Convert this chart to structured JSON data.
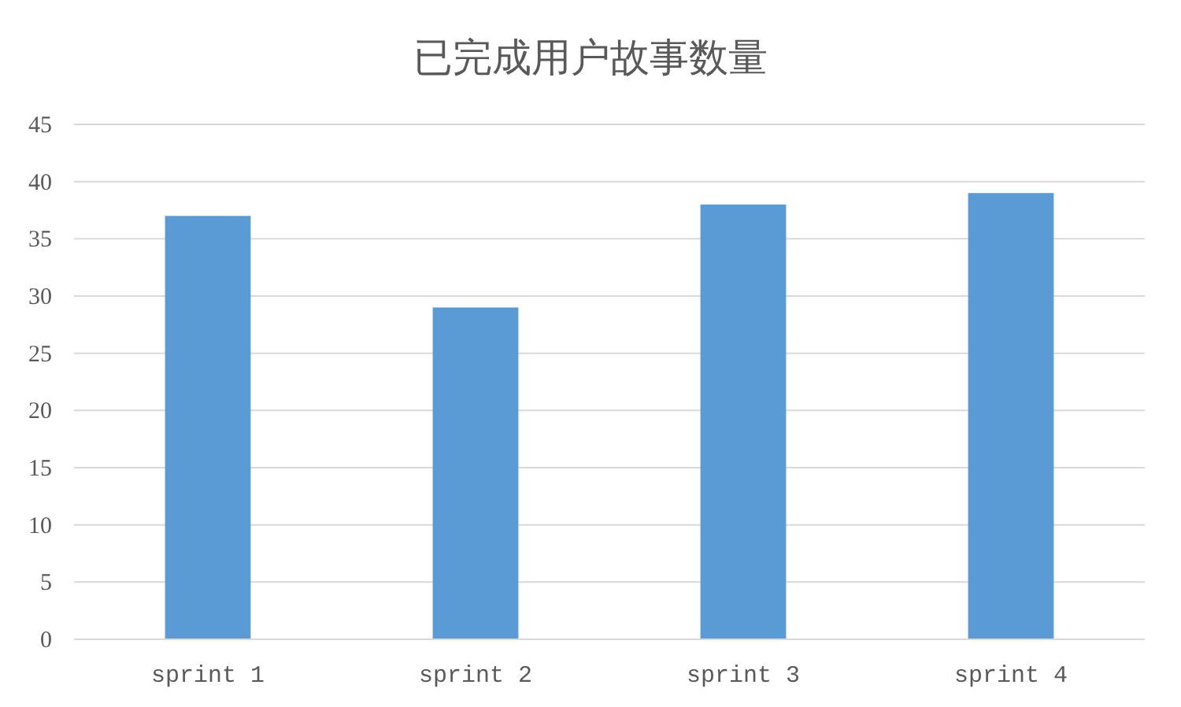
{
  "chart_data": {
    "type": "bar",
    "title": "已完成用户故事数量",
    "categories": [
      "sprint 1",
      "sprint 2",
      "sprint 3",
      "sprint 4"
    ],
    "values": [
      37,
      29,
      38,
      39
    ],
    "color": "#5b9bd5",
    "ylim": [
      0,
      45
    ],
    "yticks": [
      0,
      5,
      10,
      15,
      20,
      25,
      30,
      35,
      40,
      45
    ],
    "grid": "y"
  }
}
